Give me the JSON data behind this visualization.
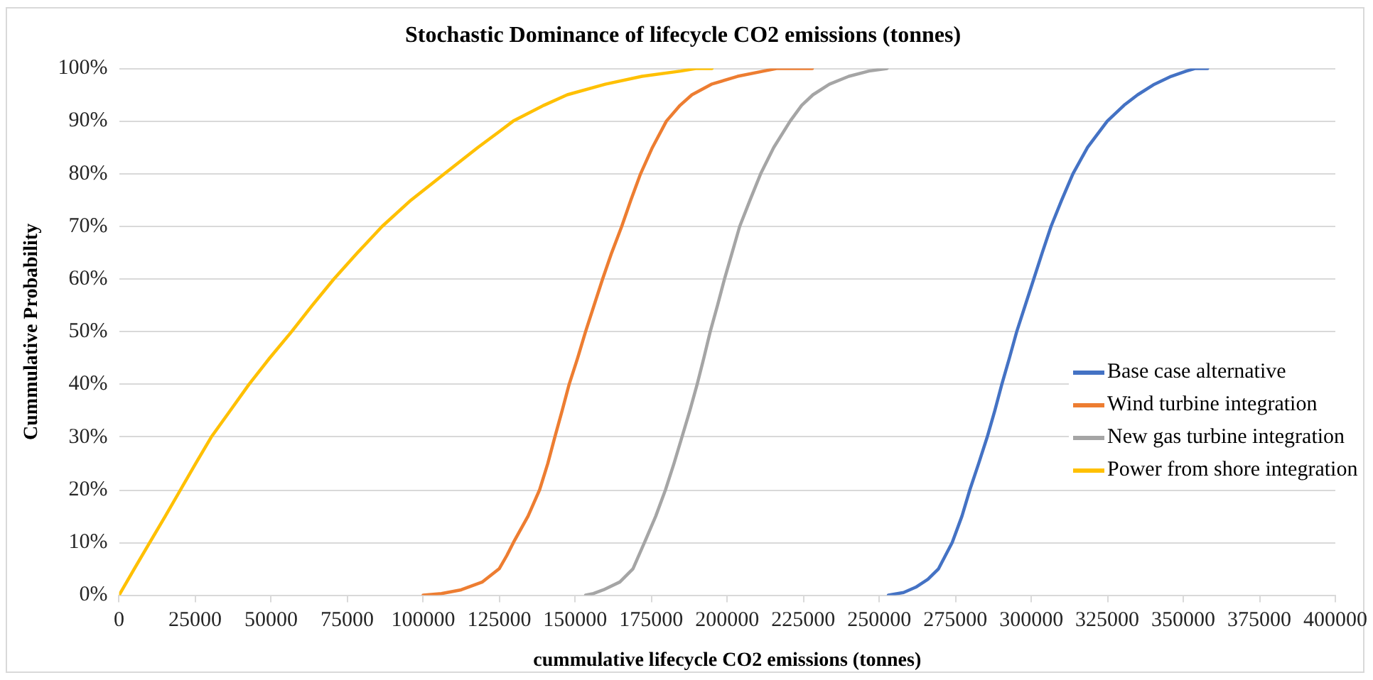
{
  "chart_data": {
    "type": "line",
    "title": "Stochastic Dominance of lifecycle CO2 emissions (tonnes)",
    "xlabel": "cummulative lifecycle CO2 emissions (tonnes)",
    "ylabel": "Cummulative Probability",
    "xlim": [
      0,
      400000
    ],
    "xticks": [
      0,
      25000,
      50000,
      75000,
      100000,
      125000,
      150000,
      175000,
      200000,
      225000,
      250000,
      275000,
      300000,
      325000,
      350000,
      375000,
      400000
    ],
    "ylim": [
      0,
      100
    ],
    "yticks": [
      {
        "value": 0,
        "label": "0%"
      },
      {
        "value": 10,
        "label": "10%"
      },
      {
        "value": 20,
        "label": "20%"
      },
      {
        "value": 30,
        "label": "30%"
      },
      {
        "value": 40,
        "label": "40%"
      },
      {
        "value": 50,
        "label": "50%"
      },
      {
        "value": 60,
        "label": "60%"
      },
      {
        "value": 70,
        "label": "70%"
      },
      {
        "value": 80,
        "label": "80%"
      },
      {
        "value": 90,
        "label": "90%"
      },
      {
        "value": 100,
        "label": "100%"
      }
    ],
    "grid": "y",
    "legend": "right",
    "series": [
      {
        "name": "Base case alternative",
        "color": "#4472c4",
        "x": [
          253000,
          258000,
          262000,
          266000,
          269500,
          274000,
          277200,
          279800,
          282700,
          285500,
          288000,
          290300,
          292800,
          295200,
          298000,
          300800,
          303600,
          306500,
          310000,
          313700,
          318500,
          325000,
          330500,
          335000,
          340500,
          346000,
          351000,
          354000,
          358000
        ],
        "values": [
          0,
          0.5,
          1.5,
          3,
          5,
          10,
          15,
          20,
          25,
          30,
          35,
          40,
          45,
          50,
          55,
          60,
          65,
          70,
          75,
          80,
          85,
          90,
          93,
          95,
          97,
          98.5,
          99.5,
          100,
          100
        ]
      },
      {
        "name": "Wind turbine integration",
        "color": "#ed7d31",
        "x": [
          100000,
          106000,
          112500,
          119500,
          125000,
          127500,
          129700,
          134500,
          138300,
          141000,
          143300,
          145700,
          148000,
          150800,
          153400,
          156200,
          159000,
          162000,
          165300,
          168300,
          171500,
          175400,
          180000,
          184500,
          188400,
          194800,
          203400,
          212000,
          216500,
          228000
        ],
        "values": [
          0,
          0.3,
          1,
          2.5,
          5,
          7.5,
          10,
          15,
          20,
          25,
          30,
          35,
          40,
          45,
          50,
          55,
          60,
          65,
          70,
          75,
          80,
          85,
          90,
          93,
          95,
          97,
          98.5,
          99.5,
          100,
          100
        ]
      },
      {
        "name": "New gas turbine integration",
        "color": "#a5a5a5",
        "x": [
          153400,
          156000,
          159300,
          164700,
          169000,
          172800,
          176500,
          179700,
          182500,
          185100,
          187700,
          190100,
          192300,
          194400,
          196800,
          199100,
          201600,
          204100,
          207500,
          211000,
          215300,
          220700,
          224500,
          228200,
          233600,
          240000,
          246600,
          252600
        ],
        "values": [
          0,
          0.3,
          1,
          2.5,
          5,
          10,
          15,
          20,
          25,
          30,
          35,
          40,
          45,
          50,
          55,
          60,
          65,
          70,
          75,
          80,
          85,
          90,
          93,
          95,
          97,
          98.5,
          99.5,
          100
        ]
      },
      {
        "name": "Power from shore integration",
        "color": "#ffc000",
        "x": [
          0,
          5000,
          10100,
          15200,
          20200,
          25200,
          30300,
          36500,
          42700,
          49500,
          56700,
          63500,
          70600,
          78400,
          86500,
          96000,
          107000,
          118000,
          125000,
          129600,
          139700,
          147400,
          159900,
          172000,
          184700,
          190000,
          195000
        ],
        "values": [
          0,
          5,
          10,
          15,
          20,
          25,
          30,
          35,
          40,
          45,
          50,
          55,
          60,
          65,
          70,
          75,
          80,
          85,
          88,
          90,
          93,
          95,
          97,
          98.5,
          99.5,
          100,
          100
        ]
      }
    ]
  }
}
